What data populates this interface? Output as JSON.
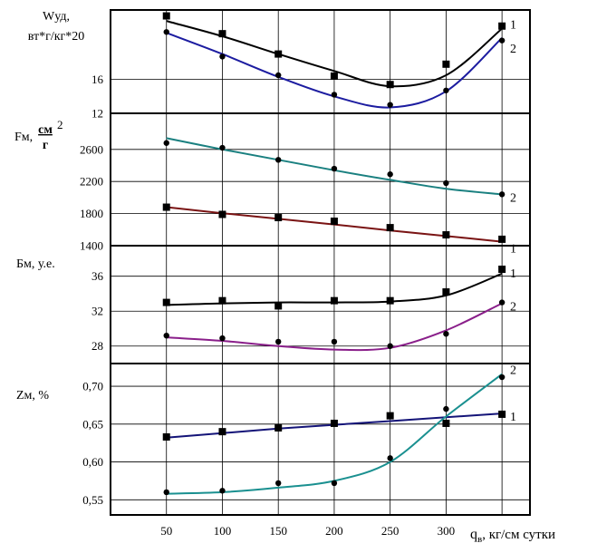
{
  "chart_data": [
    {
      "type": "line",
      "ylabel_lines": [
        "Wуд,",
        "вт*г/кг*20"
      ],
      "yticks": [
        12,
        16
      ],
      "ylim": [
        12,
        24.2
      ],
      "xlim": [
        0,
        375
      ],
      "series": [
        {
          "name": "1",
          "color": "#000000",
          "marker": "square",
          "points": [
            [
              50,
              23.5
            ],
            [
              100,
              21.4
            ],
            [
              150,
              19.0
            ],
            [
              200,
              16.4
            ],
            [
              250,
              15.4
            ],
            [
              300,
              17.8
            ],
            [
              350,
              22.3
            ]
          ],
          "curve": [
            [
              50,
              22.9
            ],
            [
              100,
              21.1
            ],
            [
              150,
              19.0
            ],
            [
              200,
              17.0
            ],
            [
              250,
              15.2
            ],
            [
              300,
              16.5
            ],
            [
              350,
              22.0
            ]
          ]
        },
        {
          "name": "2",
          "color": "#1c1ca0",
          "marker": "circle",
          "points": [
            [
              50,
              21.6
            ],
            [
              100,
              18.7
            ],
            [
              150,
              16.5
            ],
            [
              200,
              14.2
            ],
            [
              250,
              13.0
            ],
            [
              300,
              14.7
            ],
            [
              350,
              20.6
            ]
          ],
          "curve": [
            [
              50,
              21.5
            ],
            [
              100,
              19.0
            ],
            [
              150,
              16.3
            ],
            [
              200,
              14.0
            ],
            [
              250,
              12.7
            ],
            [
              300,
              14.6
            ],
            [
              350,
              20.9
            ]
          ]
        }
      ]
    },
    {
      "type": "line",
      "ylabel": "Fм,",
      "yunit_num": "см",
      "yunit_pow": "2",
      "yunit_den": "г",
      "yticks": [
        1400,
        1800,
        2200,
        2600
      ],
      "ylim": [
        1400,
        3050
      ],
      "xlim": [
        0,
        375
      ],
      "series": [
        {
          "name": "1",
          "color": "#7a1414",
          "marker": "square",
          "points": [
            [
              50,
              1880
            ],
            [
              100,
              1790
            ],
            [
              150,
              1750
            ],
            [
              200,
              1705
            ],
            [
              250,
              1625
            ],
            [
              300,
              1535
            ],
            [
              350,
              1480
            ]
          ],
          "curve": [
            [
              50,
              1880
            ],
            [
              100,
              1805
            ],
            [
              150,
              1735
            ],
            [
              200,
              1665
            ],
            [
              250,
              1590
            ],
            [
              300,
              1520
            ],
            [
              350,
              1450
            ]
          ]
        },
        {
          "name": "2",
          "color": "#1a8080",
          "marker": "circle",
          "points": [
            [
              50,
              2680
            ],
            [
              100,
              2620
            ],
            [
              150,
              2470
            ],
            [
              200,
              2360
            ],
            [
              250,
              2290
            ],
            [
              300,
              2180
            ],
            [
              350,
              2040
            ]
          ],
          "curve": [
            [
              50,
              2740
            ],
            [
              100,
              2600
            ],
            [
              150,
              2470
            ],
            [
              200,
              2340
            ],
            [
              250,
              2220
            ],
            [
              300,
              2110
            ],
            [
              350,
              2040
            ]
          ]
        }
      ]
    },
    {
      "type": "line",
      "ylabel": "Бм, у.е.",
      "yticks": [
        28,
        32,
        36
      ],
      "ylim": [
        26,
        39.5
      ],
      "xlim": [
        0,
        375
      ],
      "series": [
        {
          "name": "1",
          "color": "#000000",
          "marker": "square",
          "points": [
            [
              50,
              33.0
            ],
            [
              100,
              33.2
            ],
            [
              150,
              32.6
            ],
            [
              200,
              33.2
            ],
            [
              250,
              33.2
            ],
            [
              300,
              34.2
            ],
            [
              350,
              36.8
            ]
          ],
          "curve": [
            [
              50,
              32.7
            ],
            [
              100,
              32.9
            ],
            [
              150,
              33.0
            ],
            [
              200,
              33.0
            ],
            [
              250,
              33.1
            ],
            [
              300,
              33.8
            ],
            [
              350,
              36.3
            ]
          ]
        },
        {
          "name": "2",
          "color": "#8a1f8a",
          "marker": "circle",
          "points": [
            [
              50,
              29.2
            ],
            [
              100,
              28.9
            ],
            [
              150,
              28.5
            ],
            [
              200,
              28.5
            ],
            [
              250,
              28.0
            ],
            [
              300,
              29.4
            ],
            [
              350,
              33.0
            ]
          ],
          "curve": [
            [
              50,
              29.0
            ],
            [
              100,
              28.6
            ],
            [
              150,
              28.0
            ],
            [
              200,
              27.6
            ],
            [
              250,
              27.8
            ],
            [
              300,
              29.8
            ],
            [
              350,
              32.9
            ]
          ]
        }
      ]
    },
    {
      "type": "line",
      "ylabel": "Zм, %",
      "xlabel": "q",
      "xlabel_sub": "в",
      "xlabel_rest": ", кг/см сутки",
      "xticks": [
        50,
        100,
        150,
        200,
        250,
        300
      ],
      "yticks": [
        0.55,
        0.6,
        0.65,
        0.7
      ],
      "ytick_labels": [
        "0,55",
        "0,60",
        "0,65",
        "0,70"
      ],
      "ylim": [
        0.53,
        0.73
      ],
      "xlim": [
        0,
        375
      ],
      "series": [
        {
          "name": "1",
          "color": "#141478",
          "marker": "square",
          "points": [
            [
              50,
              0.633
            ],
            [
              100,
              0.64
            ],
            [
              150,
              0.645
            ],
            [
              200,
              0.651
            ],
            [
              250,
              0.661
            ],
            [
              300,
              0.651
            ],
            [
              350,
              0.663
            ]
          ],
          "curve": [
            [
              50,
              0.632
            ],
            [
              100,
              0.638
            ],
            [
              150,
              0.644
            ],
            [
              200,
              0.649
            ],
            [
              250,
              0.654
            ],
            [
              300,
              0.659
            ],
            [
              350,
              0.664
            ]
          ]
        },
        {
          "name": "2",
          "color": "#1a9090",
          "marker": "circle",
          "points": [
            [
              50,
              0.56
            ],
            [
              100,
              0.562
            ],
            [
              150,
              0.572
            ],
            [
              200,
              0.572
            ],
            [
              250,
              0.605
            ],
            [
              300,
              0.67
            ],
            [
              350,
              0.712
            ]
          ],
          "curve": [
            [
              50,
              0.558
            ],
            [
              100,
              0.56
            ],
            [
              150,
              0.566
            ],
            [
              200,
              0.575
            ],
            [
              250,
              0.6
            ],
            [
              300,
              0.66
            ],
            [
              350,
              0.716
            ]
          ]
        }
      ]
    }
  ]
}
